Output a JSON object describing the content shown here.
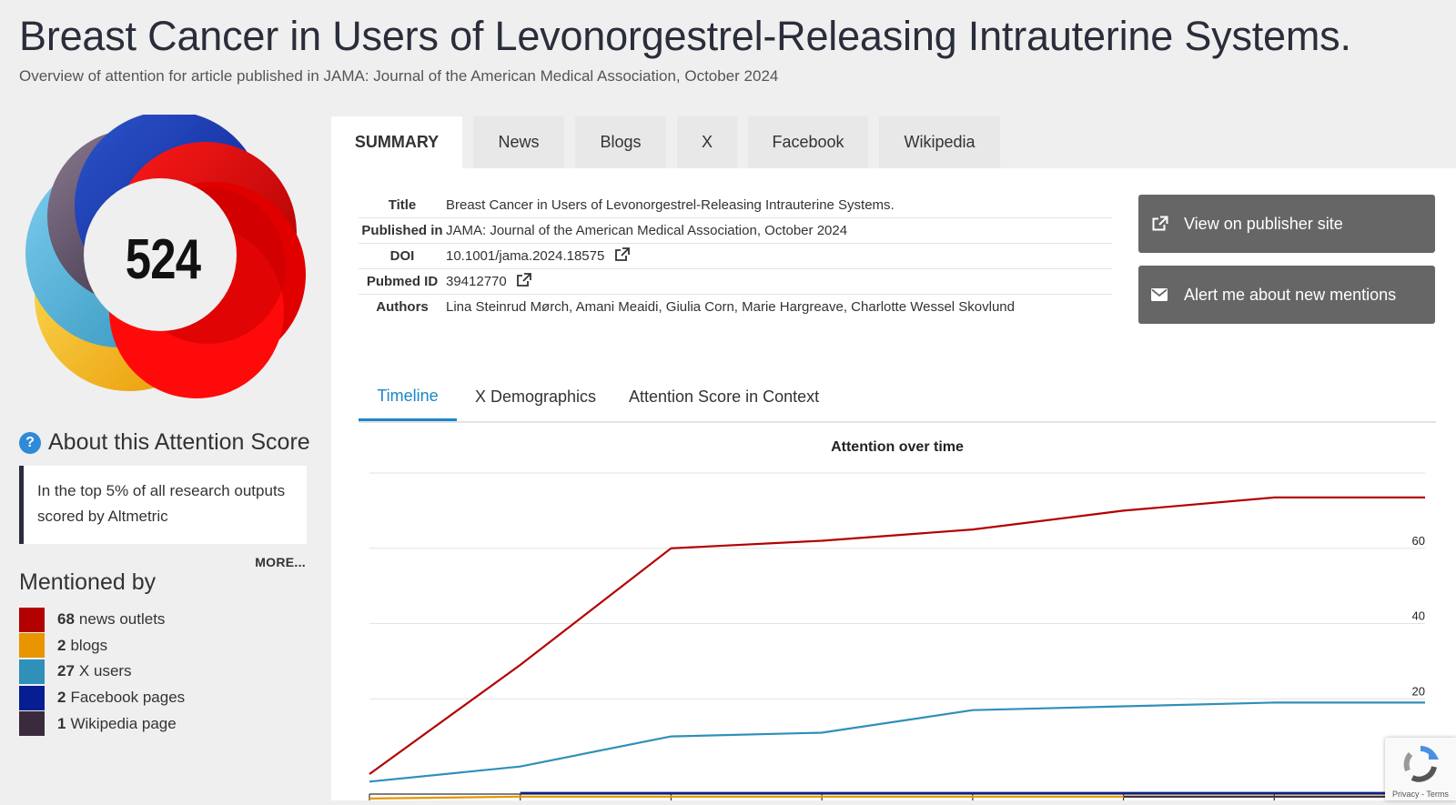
{
  "page": {
    "title": "Breast Cancer in Users of Levonorgestrel-Releasing Intrauterine Systems.",
    "subtitle": "Overview of attention for article published in JAMA: Journal of the American Medical Association, October 2024"
  },
  "score": {
    "value": "524"
  },
  "about": {
    "title": "About this Attention Score",
    "help_icon": "?",
    "text": "In the top 5% of all research outputs scored by Altmetric",
    "more": "MORE..."
  },
  "mentioned_by": {
    "title": "Mentioned by",
    "items": [
      {
        "count": "68",
        "label": "news outlets",
        "color": "#b30000"
      },
      {
        "count": "2",
        "label": "blogs",
        "color": "#e89500"
      },
      {
        "count": "27",
        "label": "X users",
        "color": "#2f90b9"
      },
      {
        "count": "2",
        "label": "Facebook pages",
        "color": "#071d92"
      },
      {
        "count": "1",
        "label": "Wikipedia page",
        "color": "#3b2a3d"
      }
    ]
  },
  "tabs": [
    "SUMMARY",
    "News",
    "Blogs",
    "X",
    "Facebook",
    "Wikipedia"
  ],
  "details": {
    "rows": [
      {
        "label": "Title",
        "value": "Breast Cancer in Users of Levonorgestrel-Releasing Intrauterine Systems."
      },
      {
        "label": "Published in",
        "value": "JAMA: Journal of the American Medical Association, October 2024"
      },
      {
        "label": "DOI",
        "value": "10.1001/jama.2024.18575"
      },
      {
        "label": "Pubmed ID",
        "value": "39412770"
      },
      {
        "label": "Authors",
        "value": "Lina Steinrud Mørch, Amani Meaidi, Giulia Corn, Marie Hargreave, Charlotte Wessel Skovlund"
      }
    ]
  },
  "buttons": {
    "publisher": "View on publisher site",
    "alert": "Alert me about new mentions"
  },
  "subtabs": [
    "Timeline",
    "X Demographics",
    "Attention Score in Context"
  ],
  "recaptcha": {
    "links": "Privacy - Terms"
  },
  "chart_data": {
    "type": "line",
    "title": "Attention over time",
    "xlabel": "",
    "ylabel": "",
    "ylim": [
      0,
      80
    ],
    "yticks": [
      "20",
      "40",
      "60"
    ],
    "grid": true,
    "x": [
      0,
      1,
      2,
      3,
      4,
      5,
      6,
      7
    ],
    "series": [
      {
        "values": [
          0,
          29,
          60,
          62,
          65,
          70,
          73.5,
          73.5
        ],
        "color": "#b30000"
      },
      {
        "values": [
          -2,
          2,
          10,
          11,
          17,
          18,
          19,
          19
        ],
        "color": "#2f90b9"
      },
      {
        "values": [
          -6.5,
          -6,
          -6,
          -6,
          -6,
          -6,
          -6,
          -6
        ],
        "color": "#e89500"
      },
      {
        "values": [
          null,
          -5,
          -5,
          -5,
          -5,
          -5,
          -5,
          -5
        ],
        "color": "#071d92"
      },
      {
        "values": [
          null,
          null,
          null,
          null,
          null,
          -6,
          -6,
          -6
        ],
        "color": "#3b2a3d"
      }
    ]
  }
}
